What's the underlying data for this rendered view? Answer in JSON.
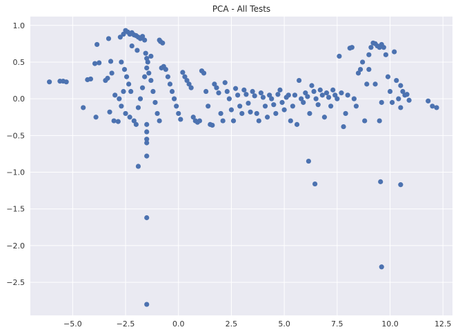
{
  "chart_data": {
    "type": "scatter",
    "title": "PCA - All Tests",
    "xlabel": "",
    "ylabel": "",
    "xlim": [
      -7.0,
      12.95
    ],
    "ylim": [
      -2.95,
      1.12
    ],
    "xticks": [
      -5.0,
      -2.5,
      0.0,
      2.5,
      5.0,
      7.5,
      10.0,
      12.5
    ],
    "xtick_labels": [
      "−5.0",
      "−2.5",
      "0.0",
      "2.5",
      "5.0",
      "7.5",
      "10.0",
      "12.5"
    ],
    "yticks": [
      1.0,
      0.5,
      0.0,
      -0.5,
      -1.0,
      -1.5,
      -2.0,
      -2.5
    ],
    "ytick_labels": [
      "1.0",
      "0.5",
      "0.0",
      "−0.5",
      "−1.0",
      "−1.5",
      "−2.0",
      "−2.5"
    ],
    "grid": true,
    "colors": {
      "marker": "#4c72b0",
      "background": "#eaeaf2",
      "grid": "#ffffff"
    },
    "series": [
      {
        "points": [
          [
            -6.1,
            0.23
          ],
          [
            -5.6,
            0.24
          ],
          [
            -5.45,
            0.24
          ],
          [
            -5.3,
            0.23
          ],
          [
            -4.5,
            -0.12
          ],
          [
            -4.3,
            0.26
          ],
          [
            -4.15,
            0.27
          ],
          [
            -3.95,
            0.48
          ],
          [
            -3.85,
            0.74
          ],
          [
            -3.75,
            0.49
          ],
          [
            -3.9,
            -0.25
          ],
          [
            -3.45,
            0.25
          ],
          [
            -3.35,
            0.28
          ],
          [
            -3.3,
            0.82
          ],
          [
            -3.25,
            -0.18
          ],
          [
            -3.2,
            0.51
          ],
          [
            -3.15,
            0.35
          ],
          [
            -3.05,
            -0.3
          ],
          [
            -3.0,
            0.05
          ],
          [
            -2.85,
            -0.31
          ],
          [
            -2.75,
            0.84
          ],
          [
            -2.6,
            0.88
          ],
          [
            -2.5,
            0.93
          ],
          [
            -2.4,
            0.91
          ],
          [
            -2.3,
            0.88
          ],
          [
            -2.2,
            0.9
          ],
          [
            -2.1,
            0.87
          ],
          [
            -2.0,
            0.86
          ],
          [
            -1.9,
            0.84
          ],
          [
            -1.8,
            0.82
          ],
          [
            -1.7,
            0.85
          ],
          [
            -1.6,
            0.8
          ],
          [
            -1.55,
            0.62
          ],
          [
            -1.5,
            0.55
          ],
          [
            -1.45,
            0.5
          ],
          [
            -2.2,
            0.72
          ],
          [
            -1.95,
            0.66
          ],
          [
            -1.3,
            0.58
          ],
          [
            -0.9,
            0.8
          ],
          [
            -0.85,
            0.78
          ],
          [
            -0.75,
            0.76
          ],
          [
            -2.7,
            0.5
          ],
          [
            -2.55,
            0.4
          ],
          [
            -2.45,
            0.3
          ],
          [
            -2.35,
            0.2
          ],
          [
            -2.25,
            0.1
          ],
          [
            -2.6,
            0.1
          ],
          [
            -2.8,
            0.0
          ],
          [
            -2.7,
            -0.1
          ],
          [
            -2.5,
            -0.2
          ],
          [
            -2.3,
            -0.25
          ],
          [
            -2.1,
            -0.3
          ],
          [
            -2.0,
            -0.35
          ],
          [
            -1.9,
            -0.12
          ],
          [
            -1.8,
            0.0
          ],
          [
            -1.7,
            0.15
          ],
          [
            -1.6,
            0.3
          ],
          [
            -1.5,
            0.42
          ],
          [
            -1.4,
            0.35
          ],
          [
            -1.3,
            0.25
          ],
          [
            -1.2,
            0.1
          ],
          [
            -1.1,
            -0.05
          ],
          [
            -1.0,
            -0.2
          ],
          [
            -0.9,
            -0.3
          ],
          [
            -0.8,
            0.42
          ],
          [
            -0.7,
            0.44
          ],
          [
            -0.6,
            0.4
          ],
          [
            -0.5,
            0.3
          ],
          [
            -0.4,
            0.2
          ],
          [
            -0.3,
            0.1
          ],
          [
            -0.2,
            0.0
          ],
          [
            -0.1,
            -0.1
          ],
          [
            0.0,
            -0.2
          ],
          [
            0.1,
            -0.28
          ],
          [
            0.2,
            0.36
          ],
          [
            0.3,
            0.3
          ],
          [
            0.4,
            0.25
          ],
          [
            0.5,
            0.2
          ],
          [
            0.6,
            0.15
          ],
          [
            0.7,
            -0.25
          ],
          [
            0.8,
            -0.3
          ],
          [
            0.9,
            -0.32
          ],
          [
            1.0,
            -0.3
          ],
          [
            1.1,
            0.38
          ],
          [
            1.2,
            0.35
          ],
          [
            1.3,
            0.1
          ],
          [
            1.4,
            -0.1
          ],
          [
            1.5,
            -0.35
          ],
          [
            1.6,
            -0.36
          ],
          [
            1.7,
            0.2
          ],
          [
            1.8,
            0.15
          ],
          [
            1.9,
            0.08
          ],
          [
            2.0,
            -0.2
          ],
          [
            2.1,
            -0.3
          ],
          [
            2.2,
            0.22
          ],
          [
            2.3,
            0.1
          ],
          [
            2.4,
            0.0
          ],
          [
            2.5,
            -0.15
          ],
          [
            2.6,
            -0.3
          ],
          [
            2.7,
            0.14
          ],
          [
            2.8,
            0.05
          ],
          [
            2.9,
            -0.1
          ],
          [
            3.0,
            -0.2
          ],
          [
            3.1,
            0.12
          ],
          [
            3.2,
            0.06
          ],
          [
            3.3,
            -0.06
          ],
          [
            3.4,
            -0.18
          ],
          [
            3.5,
            0.1
          ],
          [
            3.6,
            0.04
          ],
          [
            3.7,
            -0.2
          ],
          [
            3.8,
            -0.3
          ],
          [
            3.9,
            0.08
          ],
          [
            4.0,
            0.02
          ],
          [
            4.1,
            -0.1
          ],
          [
            4.2,
            -0.25
          ],
          [
            4.3,
            0.05
          ],
          [
            4.4,
            0.0
          ],
          [
            4.5,
            -0.08
          ],
          [
            4.6,
            -0.2
          ],
          [
            4.7,
            0.06
          ],
          [
            4.8,
            0.12
          ],
          [
            4.9,
            -0.05
          ],
          [
            5.0,
            -0.15
          ],
          [
            5.1,
            0.02
          ],
          [
            5.2,
            0.05
          ],
          [
            5.3,
            -0.3
          ],
          [
            5.4,
            -0.1
          ],
          [
            5.5,
            0.05
          ],
          [
            5.6,
            -0.35
          ],
          [
            5.7,
            0.25
          ],
          [
            5.8,
            0.0
          ],
          [
            5.9,
            -0.05
          ],
          [
            6.0,
            0.08
          ],
          [
            6.1,
            0.03
          ],
          [
            6.2,
            -0.2
          ],
          [
            6.3,
            0.18
          ],
          [
            6.4,
            0.1
          ],
          [
            6.5,
            0.0
          ],
          [
            6.6,
            -0.08
          ],
          [
            6.7,
            0.12
          ],
          [
            6.8,
            0.05
          ],
          [
            6.9,
            -0.25
          ],
          [
            7.0,
            0.08
          ],
          [
            7.1,
            0.02
          ],
          [
            7.2,
            -0.1
          ],
          [
            7.3,
            0.12
          ],
          [
            7.4,
            0.05
          ],
          [
            7.5,
            0.0
          ],
          [
            7.6,
            0.58
          ],
          [
            7.7,
            0.08
          ],
          [
            7.8,
            -0.38
          ],
          [
            7.9,
            -0.2
          ],
          [
            8.0,
            0.05
          ],
          [
            8.1,
            0.69
          ],
          [
            8.2,
            0.7
          ],
          [
            8.3,
            0.0
          ],
          [
            8.4,
            -0.1
          ],
          [
            8.5,
            0.35
          ],
          [
            8.6,
            0.4
          ],
          [
            8.7,
            0.5
          ],
          [
            8.8,
            -0.3
          ],
          [
            8.9,
            0.2
          ],
          [
            9.0,
            0.6
          ],
          [
            9.1,
            0.7
          ],
          [
            9.2,
            0.76
          ],
          [
            9.3,
            0.75
          ],
          [
            9.4,
            0.72
          ],
          [
            9.5,
            0.7
          ],
          [
            9.6,
            0.74
          ],
          [
            9.7,
            0.7
          ],
          [
            9.8,
            0.6
          ],
          [
            9.9,
            0.3
          ],
          [
            10.0,
            0.1
          ],
          [
            10.1,
            -0.05
          ],
          [
            10.2,
            0.64
          ],
          [
            10.3,
            0.25
          ],
          [
            10.4,
            0.0
          ],
          [
            10.5,
            0.18
          ],
          [
            10.6,
            0.1
          ],
          [
            10.7,
            0.05
          ],
          [
            10.8,
            0.06
          ],
          [
            10.9,
            -0.02
          ],
          [
            9.5,
            -0.3
          ],
          [
            9.6,
            -0.05
          ],
          [
            9.3,
            0.2
          ],
          [
            9.0,
            0.4
          ],
          [
            10.5,
            -0.12
          ],
          [
            11.8,
            -0.03
          ],
          [
            12.0,
            -0.1
          ],
          [
            12.2,
            -0.12
          ],
          [
            6.15,
            -0.85
          ],
          [
            6.45,
            -1.16
          ],
          [
            9.55,
            -1.13
          ],
          [
            10.5,
            -1.17
          ],
          [
            9.6,
            -2.29
          ],
          [
            -1.5,
            -0.35
          ],
          [
            -1.5,
            -0.45
          ],
          [
            -1.5,
            -0.55
          ],
          [
            -1.5,
            -0.6
          ],
          [
            -1.5,
            -0.78
          ],
          [
            -1.9,
            -0.92
          ],
          [
            -1.5,
            -1.62
          ],
          [
            -1.5,
            -2.8
          ]
        ]
      }
    ]
  }
}
